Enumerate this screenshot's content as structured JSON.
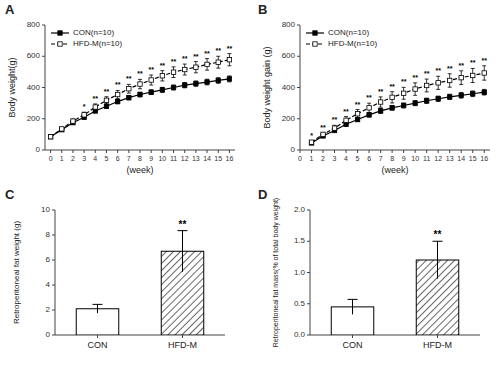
{
  "chart_data": [
    {
      "type": "line",
      "title": "A",
      "x": [
        0,
        1,
        2,
        3,
        4,
        5,
        6,
        7,
        8,
        9,
        10,
        11,
        12,
        13,
        14,
        15,
        16
      ],
      "xlim": [
        -0.5,
        16.5
      ],
      "xticks": [
        0,
        1,
        2,
        3,
        4,
        5,
        6,
        7,
        8,
        9,
        10,
        11,
        12,
        13,
        14,
        15,
        16
      ],
      "ylim": [
        0,
        800
      ],
      "yticks": [
        0,
        200,
        400,
        600,
        800
      ],
      "xlabel": "(week)",
      "ylabel": "Body weight(g)",
      "legend": "upper left",
      "grid": false,
      "series": [
        {
          "name": "CON(n=10)",
          "color": "#000000",
          "marker": "square",
          "line_style": "solid",
          "values": [
            85,
            130,
            175,
            210,
            250,
            280,
            310,
            335,
            355,
            370,
            385,
            400,
            415,
            425,
            435,
            445,
            455
          ],
          "errors": [
            4,
            7,
            9,
            11,
            12,
            13,
            14,
            14,
            15,
            15,
            16,
            16,
            17,
            17,
            18,
            18,
            19
          ]
        },
        {
          "name": "HFD-M(n=10)",
          "color": "#000000",
          "marker": "square-open",
          "line_style": "dashed",
          "values": [
            85,
            135,
            185,
            225,
            275,
            318,
            355,
            392,
            422,
            448,
            475,
            498,
            515,
            530,
            548,
            562,
            578
          ],
          "errors": [
            4,
            9,
            13,
            17,
            20,
            23,
            26,
            28,
            30,
            32,
            33,
            34,
            35,
            36,
            37,
            38,
            39
          ],
          "annotations": [
            null,
            null,
            null,
            "*",
            "**",
            "**",
            "**",
            "**",
            "**",
            "**",
            "**",
            "**",
            "**",
            "**",
            "**",
            "**",
            "**"
          ]
        }
      ]
    },
    {
      "type": "line",
      "title": "B",
      "x": [
        1,
        2,
        3,
        4,
        5,
        6,
        7,
        8,
        9,
        10,
        11,
        12,
        13,
        14,
        15,
        16
      ],
      "xlim": [
        0,
        16.5
      ],
      "xticks": [
        0,
        1,
        2,
        3,
        4,
        5,
        6,
        7,
        8,
        9,
        10,
        11,
        12,
        13,
        14,
        15,
        16
      ],
      "ylim": [
        0,
        800
      ],
      "yticks": [
        0,
        200,
        400,
        600,
        800
      ],
      "xlabel": "(week)",
      "ylabel": "Body weight gain (g)",
      "legend": "upper left",
      "grid": false,
      "series": [
        {
          "name": "CON(n=10)",
          "color": "#000000",
          "marker": "square",
          "line_style": "solid",
          "values": [
            45,
            90,
            125,
            165,
            195,
            225,
            250,
            270,
            285,
            300,
            315,
            328,
            340,
            350,
            360,
            370
          ],
          "errors": [
            5,
            8,
            10,
            12,
            13,
            14,
            15,
            15,
            16,
            16,
            17,
            17,
            17,
            18,
            18,
            18
          ]
        },
        {
          "name": "HFD-M(n=10)",
          "color": "#000000",
          "marker": "square-open",
          "line_style": "dashed",
          "values": [
            50,
            100,
            140,
            190,
            232,
            270,
            307,
            337,
            363,
            390,
            413,
            430,
            445,
            463,
            477,
            493
          ],
          "errors": [
            7,
            12,
            18,
            24,
            27,
            30,
            33,
            36,
            38,
            40,
            41,
            42,
            43,
            44,
            45,
            46
          ],
          "annotations": [
            "*",
            "**",
            "**",
            "**",
            "**",
            "**",
            "**",
            "**",
            "**",
            "**",
            "**",
            "**",
            "**",
            "**",
            "**",
            "**"
          ]
        }
      ]
    },
    {
      "type": "bar",
      "title": "C",
      "categories": [
        "CON",
        "HFD-M"
      ],
      "values": [
        2.1,
        6.7
      ],
      "errors": [
        0.35,
        1.65
      ],
      "annotations": [
        null,
        "**"
      ],
      "color": "#ffffff",
      "ylim": [
        0,
        10
      ],
      "yticks": [
        0,
        2,
        4,
        6,
        8,
        10
      ],
      "ylabel": "Retroperitoneal fat weight (g)",
      "grid": false
    },
    {
      "type": "bar",
      "title": "D",
      "categories": [
        "CON",
        "HFD-M"
      ],
      "values": [
        0.45,
        1.2
      ],
      "errors": [
        0.12,
        0.3
      ],
      "annotations": [
        null,
        "**"
      ],
      "color": "#ffffff",
      "ylim": [
        0,
        2
      ],
      "yticks": [
        {
          "value": 0,
          "label": "0.0"
        },
        0.5,
        {
          "value": 1,
          "label": "1.0"
        },
        1.5,
        {
          "value": 2,
          "label": "2.0"
        }
      ],
      "ylabel": "Retroperitoneal fat mass(% of total body weight)",
      "grid": false
    }
  ]
}
